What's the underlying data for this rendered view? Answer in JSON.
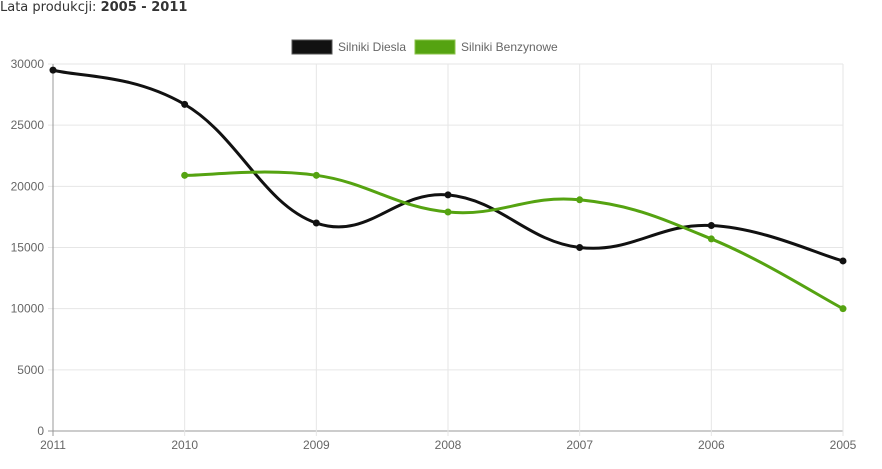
{
  "header": {
    "label": "Lata produkcji:",
    "from": "2005",
    "sep": " - ",
    "to": "2011"
  },
  "chart_data": {
    "type": "line",
    "categories": [
      "2011",
      "2010",
      "2009",
      "2008",
      "2007",
      "2006",
      "2005"
    ],
    "series": [
      {
        "name": "Silniki Diesla",
        "color": "#111111",
        "values": [
          29500,
          26700,
          17000,
          19300,
          15000,
          16800,
          13900
        ]
      },
      {
        "name": "Silniki Benzynowe",
        "color": "#55a311",
        "values": [
          null,
          20900,
          20900,
          17900,
          18900,
          15700,
          10000
        ]
      }
    ],
    "ylim": [
      0,
      30000
    ],
    "yticks": [
      0,
      5000,
      10000,
      15000,
      20000,
      25000,
      30000
    ],
    "legend": "top-center",
    "grid": true
  }
}
